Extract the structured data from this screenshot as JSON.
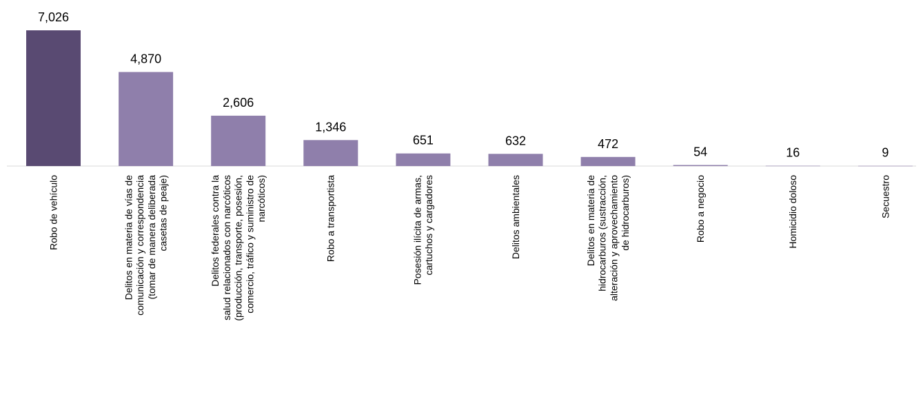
{
  "chart_data": {
    "type": "bar",
    "title": "",
    "xlabel": "",
    "ylabel": "",
    "ylim": [
      0,
      7026
    ],
    "grid": false,
    "legend": "none",
    "colors": {
      "highlight": "#594A72",
      "default": "#8F7FAB",
      "axis": "#D9D9D9",
      "text": "#000000"
    },
    "categories": [
      [
        "Robo de vehículo"
      ],
      [
        "Delitos en materia de vías de",
        "comunicación y correspondencia",
        "(tomar  de manera deliberada",
        "casetas de peaje)"
      ],
      [
        "Delitos federales contra la",
        "salud relacionados con narcóticos",
        "(producción, transporte, posesión,",
        "comercio, tráfico y suministro de",
        "narcóticos)"
      ],
      [
        "Robo a transportista"
      ],
      [
        "Posesión ilícita de armas,",
        "cartuchos y cargadores"
      ],
      [
        "Delitos ambientales"
      ],
      [
        "Delitos en materia de",
        "hidrocarburos (sustracción,",
        "alteración y aprovechamiento",
        "de hidrocarburos)"
      ],
      [
        "Robo a negocio"
      ],
      [
        "Homicidio doloso"
      ],
      [
        "Secuestro"
      ]
    ],
    "values": [
      7026,
      4870,
      2606,
      1346,
      651,
      632,
      472,
      54,
      16,
      9
    ],
    "value_labels": [
      "7,026",
      "4,870",
      "2,606",
      "1,346",
      "651",
      "632",
      "472",
      "54",
      "16",
      "9"
    ]
  }
}
